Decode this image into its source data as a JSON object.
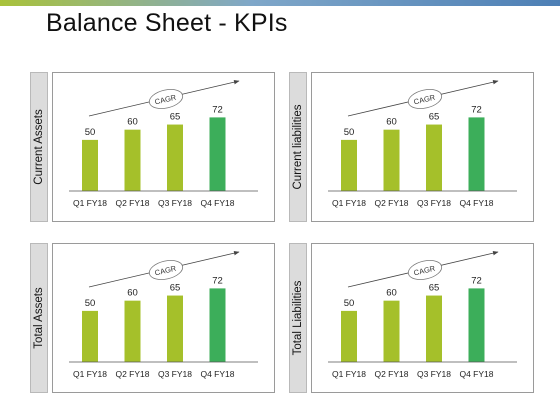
{
  "title": "Balance Sheet - KPIs",
  "colors": {
    "bar": "#a5c02a",
    "bar_highlight": "#3cae5a"
  },
  "chart_data": [
    {
      "type": "bar",
      "label": "Current Assets",
      "categories": [
        "Q1 FY18",
        "Q2 FY18",
        "Q3 FY18",
        "Q4 FY18"
      ],
      "values": [
        50,
        60,
        65,
        72
      ],
      "annotation": "CAGR",
      "ylim": [
        0,
        90
      ]
    },
    {
      "type": "bar",
      "label": "Current liabilities",
      "categories": [
        "Q1 FY18",
        "Q2 FY18",
        "Q3 FY18",
        "Q4 FY18"
      ],
      "values": [
        50,
        60,
        65,
        72
      ],
      "annotation": "CAGR",
      "ylim": [
        0,
        90
      ]
    },
    {
      "type": "bar",
      "label": "Total Assets",
      "categories": [
        "Q1 FY18",
        "Q2 FY18",
        "Q3 FY18",
        "Q4 FY18"
      ],
      "values": [
        50,
        60,
        65,
        72
      ],
      "annotation": "CAGR",
      "ylim": [
        0,
        90
      ]
    },
    {
      "type": "bar",
      "label": "Total Liabilities",
      "categories": [
        "Q1 FY18",
        "Q2 FY18",
        "Q3 FY18",
        "Q4 FY18"
      ],
      "values": [
        50,
        60,
        65,
        72
      ],
      "annotation": "CAGR",
      "ylim": [
        0,
        90
      ]
    }
  ]
}
